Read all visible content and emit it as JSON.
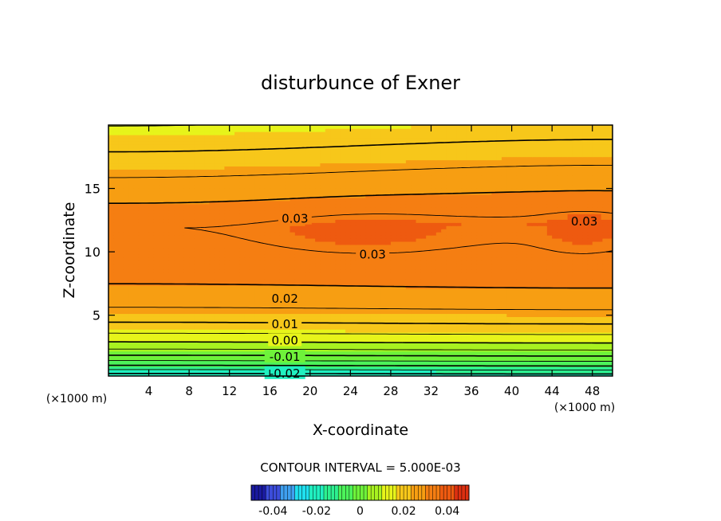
{
  "chart_data": {
    "type": "contour",
    "title": "disturbunce of Exner",
    "xlabel": "X-coordinate",
    "ylabel": "Z-coordinate",
    "x_unit_left": "(×1000 m)",
    "x_unit_right": "(×1000 m)",
    "xlim": [
      0,
      50
    ],
    "ylim": [
      0.2,
      20
    ],
    "x_ticks": [
      4,
      8,
      12,
      16,
      20,
      24,
      28,
      32,
      36,
      40,
      44,
      48
    ],
    "y_ticks": [
      5,
      10,
      15
    ],
    "contour_interval_text": "CONTOUR INTERVAL = 5.000E-03",
    "contour_labels": [
      {
        "text": "0.03",
        "x": 18.5,
        "z": 12.6
      },
      {
        "text": "0.03",
        "x": 26.2,
        "z": 9.8
      },
      {
        "text": "0.03",
        "x": 47.2,
        "z": 12.4
      },
      {
        "text": "0.02",
        "x": 17.5,
        "z": 6.3
      },
      {
        "text": "0.01",
        "x": 17.5,
        "z": 4.3
      },
      {
        "text": "0.00",
        "x": 17.5,
        "z": 3.0
      },
      {
        "text": "-0.01",
        "x": 17.5,
        "z": 1.7
      },
      {
        "text": "-0.02",
        "x": 17.5,
        "z": 0.4
      }
    ],
    "colorbar": {
      "min": -0.05,
      "max": 0.05,
      "tick_values": [
        -0.04,
        -0.02,
        0,
        0.02,
        0.04
      ],
      "tick_labels": [
        "-0.04",
        "-0.02",
        "0",
        "0.02",
        "0.04"
      ],
      "colors": [
        "#1a1aa0",
        "#3c4ddb",
        "#3fa0f0",
        "#1fe0f0",
        "#20f0c0",
        "#2df090",
        "#4cf35a",
        "#6ef23a",
        "#a8f220",
        "#e7f41a",
        "#f7c71a",
        "#f79e12",
        "#f57e12",
        "#ee5a10",
        "#dc3010"
      ]
    }
  }
}
